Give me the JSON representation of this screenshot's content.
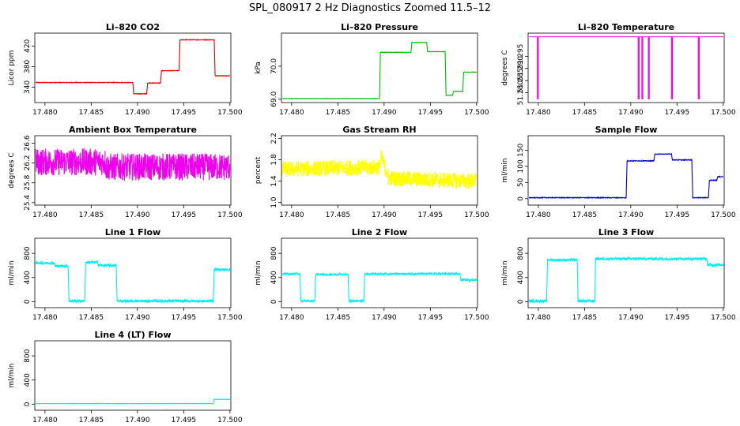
{
  "main_title": "SPL_080917  2 Hz Diagnostics Zoomed 11.5–12",
  "chart_data": [
    {
      "type": "line",
      "title": "Li–820 CO2",
      "ylabel": "Licor ppm",
      "color": "#dd0000",
      "xlim": [
        17.4789,
        17.5001
      ],
      "ylim": [
        310,
        445
      ],
      "xticks": [
        17.48,
        17.485,
        17.49,
        17.495,
        17.5
      ],
      "xtick_labels": [
        "17.480",
        "17.485",
        "17.490",
        "17.495",
        "17.500"
      ],
      "yticks": [
        340,
        380,
        420
      ],
      "ytick_labels": [
        "340",
        "380",
        "420"
      ],
      "noise": 1,
      "x": [
        17.479,
        17.4895,
        17.4896,
        17.491,
        17.4911,
        17.4925,
        17.4926,
        17.4945,
        17.4946,
        17.4983,
        17.4984,
        17.5
      ],
      "y": [
        349,
        349,
        327,
        327,
        348,
        348,
        372,
        372,
        432,
        432,
        362,
        362
      ]
    },
    {
      "type": "line",
      "title": "Li–820 Pressure",
      "ylabel": "kPa",
      "color": "#00bb00",
      "xlim": [
        17.4789,
        17.5001
      ],
      "ylim": [
        68.9,
        71.0
      ],
      "xticks": [
        17.48,
        17.485,
        17.49,
        17.495,
        17.5
      ],
      "xtick_labels": [
        "17.480",
        "17.485",
        "17.490",
        "17.495",
        "17.500"
      ],
      "yticks": [
        69.0,
        70.0
      ],
      "ytick_labels": [
        "69.0",
        "70.0"
      ],
      "noise": 0.01,
      "x": [
        17.479,
        17.4895,
        17.4896,
        17.4929,
        17.493,
        17.4946,
        17.4947,
        17.4966,
        17.4967,
        17.4974,
        17.4975,
        17.4985,
        17.4986,
        17.5
      ],
      "y": [
        69.02,
        69.02,
        70.42,
        70.42,
        70.72,
        70.72,
        70.44,
        70.44,
        69.12,
        69.12,
        69.24,
        69.24,
        69.82,
        69.82
      ]
    },
    {
      "type": "line",
      "title": "Li–820 Temperature",
      "ylabel": "degrees C",
      "color": "#ee00ee",
      "xlim": [
        17.4789,
        17.5001
      ],
      "ylim": [
        51.276,
        51.3045
      ],
      "xticks": [
        17.48,
        17.485,
        17.49,
        17.495,
        17.5
      ],
      "xtick_labels": [
        "17.480",
        "17.485",
        "17.490",
        "17.495",
        "17.500"
      ],
      "yticks": [
        51.28,
        51.285,
        51.29,
        51.295
      ],
      "ytick_labels": [
        "51.280",
        "51.285",
        "51.290",
        "51.295"
      ],
      "noise": 0,
      "x": [
        17.479,
        17.4799,
        17.4799,
        17.48,
        17.48,
        17.4908,
        17.4908,
        17.4909,
        17.4909,
        17.4912,
        17.4912,
        17.4913,
        17.4913,
        17.4919,
        17.4919,
        17.492,
        17.492,
        17.4944,
        17.4944,
        17.4945,
        17.4945,
        17.4973,
        17.4973,
        17.4974,
        17.4974,
        17.5
      ],
      "y": [
        51.303,
        51.303,
        51.2775,
        51.2775,
        51.303,
        51.303,
        51.2775,
        51.2775,
        51.303,
        51.303,
        51.2775,
        51.2775,
        51.303,
        51.303,
        51.2775,
        51.2775,
        51.303,
        51.303,
        51.2775,
        51.2775,
        51.303,
        51.303,
        51.2775,
        51.2775,
        51.303,
        51.303
      ]
    },
    {
      "type": "line",
      "title": "Ambient Box Temperature",
      "ylabel": "degrees C",
      "color": "#ee00ee",
      "xlim": [
        17.4789,
        17.5001
      ],
      "ylim": [
        25.35,
        26.75
      ],
      "xticks": [
        17.48,
        17.485,
        17.49,
        17.495,
        17.5
      ],
      "xtick_labels": [
        "17.480",
        "17.485",
        "17.490",
        "17.495",
        "17.500"
      ],
      "yticks": [
        25.4,
        25.8,
        26.2,
        26.6
      ],
      "ytick_labels": [
        "25.4",
        "25.8",
        "26.2",
        "26.6"
      ],
      "noise": 0.55,
      "x": [
        17.479,
        17.4865,
        17.4866,
        17.5
      ],
      "y": [
        26.22,
        26.22,
        26.12,
        26.12
      ]
    },
    {
      "type": "line",
      "title": "Gas Stream RH",
      "ylabel": "percent",
      "color": "#ffff00",
      "xlim": [
        17.4789,
        17.5001
      ],
      "ylim": [
        0.95,
        2.25
      ],
      "xticks": [
        17.48,
        17.485,
        17.49,
        17.495,
        17.5
      ],
      "xtick_labels": [
        "17.480",
        "17.485",
        "17.490",
        "17.495",
        "17.500"
      ],
      "yticks": [
        1.0,
        1.4,
        1.8,
        2.2
      ],
      "ytick_labels": [
        "1.0",
        "1.4",
        "1.8",
        "2.2"
      ],
      "noise": 0.3,
      "x": [
        17.479,
        17.4895,
        17.4897,
        17.4905,
        17.5
      ],
      "y": [
        1.62,
        1.66,
        1.85,
        1.45,
        1.4
      ]
    },
    {
      "type": "line",
      "title": "Sample Flow",
      "ylabel": "ml/min",
      "color": "#0000cc",
      "xlim": [
        17.4789,
        17.5001
      ],
      "ylim": [
        -20,
        195
      ],
      "xticks": [
        17.48,
        17.485,
        17.49,
        17.495,
        17.5
      ],
      "xtick_labels": [
        "17.480",
        "17.485",
        "17.490",
        "17.495",
        "17.500"
      ],
      "yticks": [
        0,
        50,
        100,
        150
      ],
      "ytick_labels": [
        "0",
        "50",
        "100",
        "150"
      ],
      "noise": 2,
      "x": [
        17.479,
        17.4895,
        17.4896,
        17.4925,
        17.4926,
        17.4944,
        17.4945,
        17.4966,
        17.4967,
        17.4984,
        17.4985,
        17.4993,
        17.4994,
        17.5
      ],
      "y": [
        3,
        3,
        117,
        117,
        138,
        138,
        120,
        120,
        3,
        3,
        57,
        57,
        68,
        68
      ]
    },
    {
      "type": "line",
      "title": "Line 1 Flow",
      "ylabel": "ml/min",
      "color": "#00eeee",
      "xlim": [
        17.4789,
        17.5001
      ],
      "ylim": [
        -100,
        1050
      ],
      "xticks": [
        17.48,
        17.485,
        17.49,
        17.495,
        17.5
      ],
      "xtick_labels": [
        "17.480",
        "17.485",
        "17.490",
        "17.495",
        "17.500"
      ],
      "yticks": [
        0,
        400,
        800
      ],
      "ytick_labels": [
        "0",
        "400",
        "800"
      ],
      "noise": 45,
      "x": [
        17.479,
        17.481,
        17.4811,
        17.4825,
        17.4826,
        17.4843,
        17.4844,
        17.4857,
        17.4858,
        17.4877,
        17.4878,
        17.4982,
        17.4983,
        17.5
      ],
      "y": [
        640,
        640,
        590,
        590,
        10,
        10,
        650,
        650,
        600,
        600,
        10,
        10,
        530,
        530
      ]
    },
    {
      "type": "line",
      "title": "Line 2 Flow",
      "ylabel": "ml/min",
      "color": "#00eeee",
      "xlim": [
        17.4789,
        17.5001
      ],
      "ylim": [
        -100,
        1050
      ],
      "xticks": [
        17.48,
        17.485,
        17.49,
        17.495,
        17.5
      ],
      "xtick_labels": [
        "17.480",
        "17.485",
        "17.490",
        "17.495",
        "17.500"
      ],
      "yticks": [
        0,
        400,
        800
      ],
      "ytick_labels": [
        "0",
        "400",
        "800"
      ],
      "noise": 35,
      "x": [
        17.479,
        17.4809,
        17.481,
        17.4825,
        17.4826,
        17.4861,
        17.4862,
        17.4878,
        17.4879,
        17.4982,
        17.4983,
        17.5
      ],
      "y": [
        460,
        460,
        10,
        10,
        450,
        450,
        10,
        10,
        460,
        460,
        360,
        360
      ]
    },
    {
      "type": "line",
      "title": "Line 3 Flow",
      "ylabel": "ml/min",
      "color": "#00eeee",
      "xlim": [
        17.4789,
        17.5001
      ],
      "ylim": [
        -100,
        1050
      ],
      "xticks": [
        17.48,
        17.485,
        17.49,
        17.495,
        17.5
      ],
      "xtick_labels": [
        "17.480",
        "17.485",
        "17.490",
        "17.495",
        "17.500"
      ],
      "yticks": [
        0,
        400,
        800
      ],
      "ytick_labels": [
        "0",
        "400",
        "800"
      ],
      "noise": 45,
      "x": [
        17.479,
        17.4809,
        17.481,
        17.4842,
        17.4843,
        17.4861,
        17.4862,
        17.4982,
        17.4983,
        17.5
      ],
      "y": [
        10,
        10,
        690,
        690,
        10,
        10,
        710,
        710,
        610,
        610
      ]
    },
    {
      "type": "line",
      "title": "Line 4 (LT) Flow",
      "ylabel": "ml/min",
      "color": "#00eeee",
      "xlim": [
        17.4789,
        17.5001
      ],
      "ylim": [
        -100,
        1050
      ],
      "xticks": [
        17.48,
        17.485,
        17.49,
        17.495,
        17.5
      ],
      "xtick_labels": [
        "17.480",
        "17.485",
        "17.490",
        "17.495",
        "17.500"
      ],
      "yticks": [
        0,
        400,
        800
      ],
      "ytick_labels": [
        "0",
        "400",
        "800"
      ],
      "noise": 6,
      "x": [
        17.479,
        17.4982,
        17.4983,
        17.5
      ],
      "y": [
        10,
        10,
        80,
        80
      ]
    }
  ]
}
